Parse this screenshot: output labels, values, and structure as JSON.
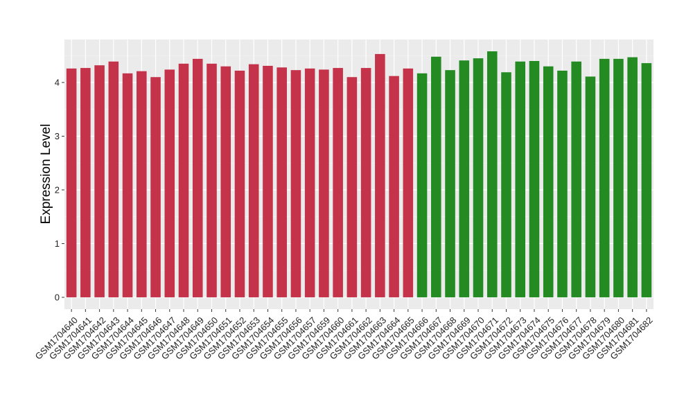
{
  "chart_data": {
    "type": "bar",
    "title": "",
    "xlabel": "",
    "ylabel": "Expression Level",
    "ylim": [
      -0.22,
      4.8
    ],
    "yticks": [
      0,
      1,
      2,
      3,
      4
    ],
    "grid": true,
    "panel_background": "#ebebeb",
    "group_colors": {
      "first": "#c4334a",
      "second": "#238b22"
    },
    "categories": [
      "GSM1704640",
      "GSM1704641",
      "GSM1704642",
      "GSM1704643",
      "GSM1704644",
      "GSM1704645",
      "GSM1704646",
      "GSM1704647",
      "GSM1704648",
      "GSM1704649",
      "GSM1704650",
      "GSM1704651",
      "GSM1704652",
      "GSM1704653",
      "GSM1704654",
      "GSM1704655",
      "GSM1704656",
      "GSM1704657",
      "GSM1704659",
      "GSM1704660",
      "GSM1704661",
      "GSM1704662",
      "GSM1704663",
      "GSM1704664",
      "GSM1704665",
      "GSM1704666",
      "GSM1704667",
      "GSM1704668",
      "GSM1704669",
      "GSM1704670",
      "GSM1704671",
      "GSM1704672",
      "GSM1704673",
      "GSM1704674",
      "GSM1704675",
      "GSM1704676",
      "GSM1704677",
      "GSM1704678",
      "GSM1704679",
      "GSM1704680",
      "GSM1704681",
      "GSM1704682"
    ],
    "values": [
      4.26,
      4.27,
      4.32,
      4.39,
      4.17,
      4.21,
      4.1,
      4.24,
      4.35,
      4.44,
      4.35,
      4.3,
      4.22,
      4.34,
      4.31,
      4.28,
      4.23,
      4.26,
      4.24,
      4.27,
      4.1,
      4.27,
      4.53,
      4.12,
      4.26,
      4.17,
      4.48,
      4.23,
      4.41,
      4.45,
      4.58,
      4.19,
      4.39,
      4.4,
      4.3,
      4.22,
      4.39,
      4.11,
      4.44,
      4.44,
      4.47,
      4.36
    ],
    "groups": [
      "first",
      "first",
      "first",
      "first",
      "first",
      "first",
      "first",
      "first",
      "first",
      "first",
      "first",
      "first",
      "first",
      "first",
      "first",
      "first",
      "first",
      "first",
      "first",
      "first",
      "first",
      "first",
      "first",
      "first",
      "first",
      "second",
      "second",
      "second",
      "second",
      "second",
      "second",
      "second",
      "second",
      "second",
      "second",
      "second",
      "second",
      "second",
      "second",
      "second",
      "second",
      "second"
    ]
  }
}
